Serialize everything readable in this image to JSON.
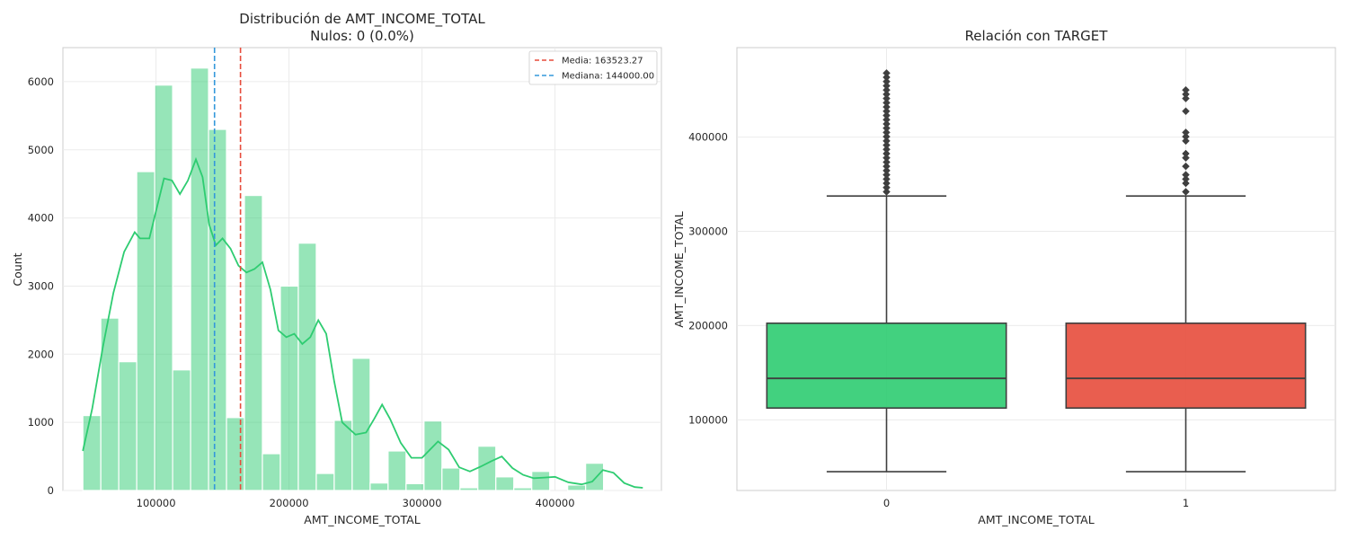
{
  "chart_data": [
    {
      "type": "histogram",
      "title": "Distribución de AMT_INCOME_TOTAL",
      "subtitle": "Nulos: 0 (0.0%)",
      "xlabel": "AMT_INCOME_TOTAL",
      "ylabel": "Count",
      "xlim": [
        30000,
        480000
      ],
      "ylim": [
        0,
        6500
      ],
      "xticks": [
        100000,
        200000,
        300000,
        400000
      ],
      "yticks": [
        0,
        1000,
        2000,
        3000,
        4000,
        5000,
        6000
      ],
      "grid": true,
      "bar_color": "#2ecc71",
      "bins": [
        {
          "x0": 45000,
          "x1": 58500,
          "count": 1100
        },
        {
          "x0": 58500,
          "x1": 72000,
          "count": 2530
        },
        {
          "x0": 72000,
          "x1": 85500,
          "count": 1890
        },
        {
          "x0": 85500,
          "x1": 99000,
          "count": 4680
        },
        {
          "x0": 99000,
          "x1": 112500,
          "count": 5950
        },
        {
          "x0": 112500,
          "x1": 126000,
          "count": 1770
        },
        {
          "x0": 126000,
          "x1": 139500,
          "count": 6200
        },
        {
          "x0": 139500,
          "x1": 153000,
          "count": 5300
        },
        {
          "x0": 153000,
          "x1": 166500,
          "count": 1070
        },
        {
          "x0": 166500,
          "x1": 180000,
          "count": 4330
        },
        {
          "x0": 180000,
          "x1": 193500,
          "count": 540
        },
        {
          "x0": 193500,
          "x1": 207000,
          "count": 3000
        },
        {
          "x0": 207000,
          "x1": 220500,
          "count": 3630
        },
        {
          "x0": 220500,
          "x1": 234000,
          "count": 250
        },
        {
          "x0": 234000,
          "x1": 247500,
          "count": 1030
        },
        {
          "x0": 247500,
          "x1": 261000,
          "count": 1940
        },
        {
          "x0": 261000,
          "x1": 274500,
          "count": 110
        },
        {
          "x0": 274500,
          "x1": 288000,
          "count": 580
        },
        {
          "x0": 288000,
          "x1": 301500,
          "count": 100
        },
        {
          "x0": 301500,
          "x1": 315000,
          "count": 1020
        },
        {
          "x0": 315000,
          "x1": 328500,
          "count": 330
        },
        {
          "x0": 328500,
          "x1": 342000,
          "count": 40
        },
        {
          "x0": 342000,
          "x1": 355500,
          "count": 650
        },
        {
          "x0": 355500,
          "x1": 369000,
          "count": 200
        },
        {
          "x0": 369000,
          "x1": 382500,
          "count": 40
        },
        {
          "x0": 382500,
          "x1": 396000,
          "count": 280
        },
        {
          "x0": 396000,
          "x1": 409500,
          "count": 0
        },
        {
          "x0": 409500,
          "x1": 423000,
          "count": 80
        },
        {
          "x0": 423000,
          "x1": 436500,
          "count": 400
        }
      ],
      "kde": {
        "color": "#2ecc71",
        "x": [
          45000,
          52000,
          60000,
          68000,
          76000,
          84000,
          88000,
          95000,
          100000,
          106000,
          112000,
          118000,
          124000,
          130000,
          135000,
          140000,
          145000,
          150000,
          156000,
          162000,
          168000,
          174000,
          180000,
          186000,
          192000,
          198000,
          204000,
          210000,
          216000,
          222000,
          228000,
          234000,
          240000,
          250000,
          258000,
          264000,
          270000,
          276000,
          284000,
          292000,
          300000,
          306000,
          312000,
          320000,
          328000,
          336000,
          344000,
          352000,
          360000,
          368000,
          376000,
          384000,
          392000,
          400000,
          410000,
          420000,
          428000,
          436000,
          444000,
          452000,
          460000,
          466000
        ],
        "y": [
          580,
          1200,
          2100,
          2900,
          3500,
          3790,
          3700,
          3700,
          4100,
          4580,
          4550,
          4350,
          4550,
          4860,
          4600,
          3900,
          3600,
          3700,
          3550,
          3300,
          3200,
          3250,
          3350,
          2950,
          2350,
          2250,
          2300,
          2150,
          2250,
          2500,
          2300,
          1600,
          1000,
          820,
          850,
          1050,
          1260,
          1050,
          700,
          480,
          480,
          600,
          720,
          600,
          340,
          280,
          350,
          430,
          500,
          330,
          230,
          180,
          190,
          200,
          120,
          90,
          130,
          300,
          260,
          110,
          50,
          40
        ]
      },
      "reference_lines": [
        {
          "label": "Media: 163523.27",
          "value": 163523.27,
          "color": "#e74c3c"
        },
        {
          "label": "Mediana: 144000.00",
          "value": 144000.0,
          "color": "#3498db"
        }
      ],
      "legend_position": "upper-right"
    },
    {
      "type": "box",
      "title": "Relación con TARGET",
      "xlabel": "AMT_INCOME_TOTAL",
      "ylabel": "AMT_INCOME_TOTAL",
      "ylim": [
        25000,
        495000
      ],
      "yticks": [
        100000,
        200000,
        300000,
        400000
      ],
      "grid": true,
      "categories": [
        "0",
        "1"
      ],
      "boxes": [
        {
          "category": "0",
          "color": "#2ecc71",
          "whisker_low": 45000,
          "q1": 112500,
          "median": 144000,
          "q3": 202500,
          "whisker_high": 337500,
          "outliers": [
            342000,
            346500,
            351000,
            355500,
            360000,
            364500,
            369000,
            373500,
            378000,
            382500,
            387000,
            391500,
            396000,
            400500,
            405000,
            409500,
            414000,
            418500,
            423000,
            427500,
            432000,
            436500,
            441000,
            445500,
            450000,
            454500,
            459000,
            463500,
            468000
          ]
        },
        {
          "category": "1",
          "color": "#e74c3c",
          "whisker_low": 45000,
          "q1": 112500,
          "median": 144000,
          "q3": 202500,
          "whisker_high": 337500,
          "outliers": [
            342000,
            351000,
            355500,
            360000,
            369000,
            378000,
            382500,
            396000,
            400500,
            405000,
            427500,
            441000,
            445500,
            450000
          ]
        }
      ]
    }
  ]
}
